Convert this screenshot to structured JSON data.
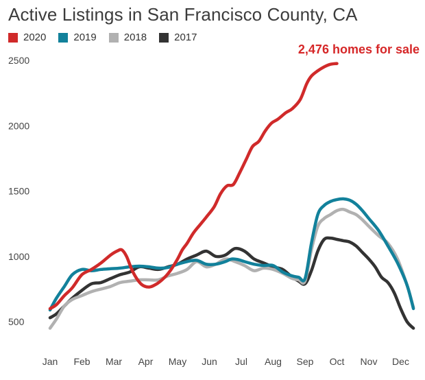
{
  "title": "Active Listings in San Francisco County, CA",
  "legend": [
    {
      "label": "2020",
      "color": "#d02a2a"
    },
    {
      "label": "2019",
      "color": "#12819b"
    },
    {
      "label": "2018",
      "color": "#b1b1b1"
    },
    {
      "label": "2017",
      "color": "#333333"
    }
  ],
  "chart_data": {
    "type": "line",
    "title": "Active Listings in San Francisco County, CA",
    "xlabel": "",
    "ylabel": "",
    "x_ticks": [
      "Jan",
      "Feb",
      "Mar",
      "Apr",
      "May",
      "Jun",
      "Jul",
      "Aug",
      "Sep",
      "Oct",
      "Nov",
      "Dec"
    ],
    "y_ticks": [
      500,
      1000,
      1500,
      2000,
      2500
    ],
    "xlim": [
      0,
      11.5
    ],
    "ylim": [
      420,
      2560
    ],
    "grid": false,
    "legend_position": "top-left",
    "annotation": {
      "text": "2,476 homes for sale",
      "x": 9.0,
      "y": 2476
    },
    "series": [
      {
        "name": "2020",
        "color": "#d02a2a",
        "x": [
          0,
          0.2,
          0.45,
          0.7,
          1.0,
          1.3,
          1.6,
          1.9,
          2.1,
          2.25,
          2.4,
          2.6,
          2.85,
          3.1,
          3.35,
          3.6,
          3.8,
          4.0,
          4.15,
          4.3,
          4.5,
          4.7,
          4.9,
          5.15,
          5.35,
          5.55,
          5.75,
          5.95,
          6.15,
          6.35,
          6.55,
          6.75,
          6.95,
          7.15,
          7.4,
          7.6,
          7.85,
          8.05,
          8.2,
          8.4,
          8.6,
          8.8,
          9.0
        ],
        "values": [
          600,
          630,
          700,
          760,
          860,
          900,
          950,
          1010,
          1040,
          1050,
          1000,
          880,
          790,
          765,
          790,
          840,
          900,
          980,
          1050,
          1100,
          1180,
          1240,
          1300,
          1380,
          1480,
          1540,
          1550,
          1640,
          1740,
          1840,
          1880,
          1960,
          2020,
          2050,
          2100,
          2130,
          2200,
          2320,
          2380,
          2420,
          2450,
          2470,
          2476
        ]
      },
      {
        "name": "2019",
        "color": "#12819b",
        "x": [
          0,
          0.2,
          0.45,
          0.7,
          1.0,
          1.3,
          1.6,
          1.9,
          2.2,
          2.5,
          2.8,
          3.1,
          3.4,
          3.7,
          4.0,
          4.3,
          4.6,
          4.9,
          5.2,
          5.5,
          5.7,
          5.9,
          6.1,
          6.4,
          6.7,
          7.0,
          7.3,
          7.6,
          7.8,
          8.0,
          8.2,
          8.4,
          8.6,
          8.8,
          9.0,
          9.2,
          9.4,
          9.6,
          9.8,
          10.0,
          10.3,
          10.6,
          10.9,
          11.2,
          11.4
        ],
        "values": [
          590,
          680,
          770,
          860,
          900,
          890,
          900,
          905,
          910,
          920,
          925,
          920,
          910,
          915,
          940,
          960,
          970,
          940,
          940,
          960,
          980,
          975,
          960,
          940,
          930,
          930,
          880,
          850,
          840,
          830,
          1100,
          1320,
          1390,
          1420,
          1435,
          1440,
          1430,
          1400,
          1350,
          1290,
          1200,
          1080,
          950,
          780,
          600
        ]
      },
      {
        "name": "2018",
        "color": "#b1b1b1",
        "x": [
          0,
          0.2,
          0.45,
          0.7,
          1.0,
          1.3,
          1.6,
          1.9,
          2.2,
          2.5,
          2.8,
          3.1,
          3.4,
          3.7,
          4.0,
          4.3,
          4.6,
          4.9,
          5.2,
          5.5,
          5.8,
          6.1,
          6.4,
          6.7,
          7.0,
          7.3,
          7.6,
          7.8,
          8.0,
          8.2,
          8.4,
          8.6,
          8.8,
          9.0,
          9.2,
          9.4,
          9.6,
          9.8,
          10.0,
          10.3,
          10.6,
          10.9,
          11.2,
          11.4
        ],
        "values": [
          450,
          520,
          620,
          670,
          700,
          730,
          750,
          770,
          800,
          810,
          820,
          820,
          820,
          850,
          870,
          900,
          960,
          920,
          940,
          980,
          960,
          930,
          890,
          910,
          900,
          870,
          830,
          820,
          810,
          1050,
          1230,
          1290,
          1320,
          1350,
          1360,
          1340,
          1320,
          1280,
          1230,
          1160,
          1100,
          980,
          780,
          610
        ]
      },
      {
        "name": "2017",
        "color": "#333333",
        "x": [
          0,
          0.2,
          0.45,
          0.7,
          1.0,
          1.3,
          1.6,
          1.9,
          2.2,
          2.5,
          2.8,
          3.1,
          3.4,
          3.7,
          4.0,
          4.3,
          4.6,
          4.9,
          5.2,
          5.5,
          5.8,
          6.1,
          6.4,
          6.7,
          7.0,
          7.3,
          7.6,
          7.8,
          8.0,
          8.2,
          8.4,
          8.6,
          8.8,
          9.0,
          9.2,
          9.4,
          9.6,
          9.8,
          10.0,
          10.2,
          10.4,
          10.6,
          10.8,
          11.0,
          11.2,
          11.4
        ],
        "values": [
          530,
          560,
          620,
          680,
          740,
          790,
          800,
          830,
          860,
          880,
          920,
          910,
          900,
          920,
          940,
          980,
          1010,
          1040,
          1000,
          1010,
          1060,
          1040,
          980,
          950,
          920,
          900,
          840,
          810,
          790,
          890,
          1040,
          1130,
          1140,
          1130,
          1120,
          1110,
          1080,
          1030,
          980,
          920,
          840,
          800,
          720,
          600,
          500,
          450
        ]
      }
    ]
  }
}
